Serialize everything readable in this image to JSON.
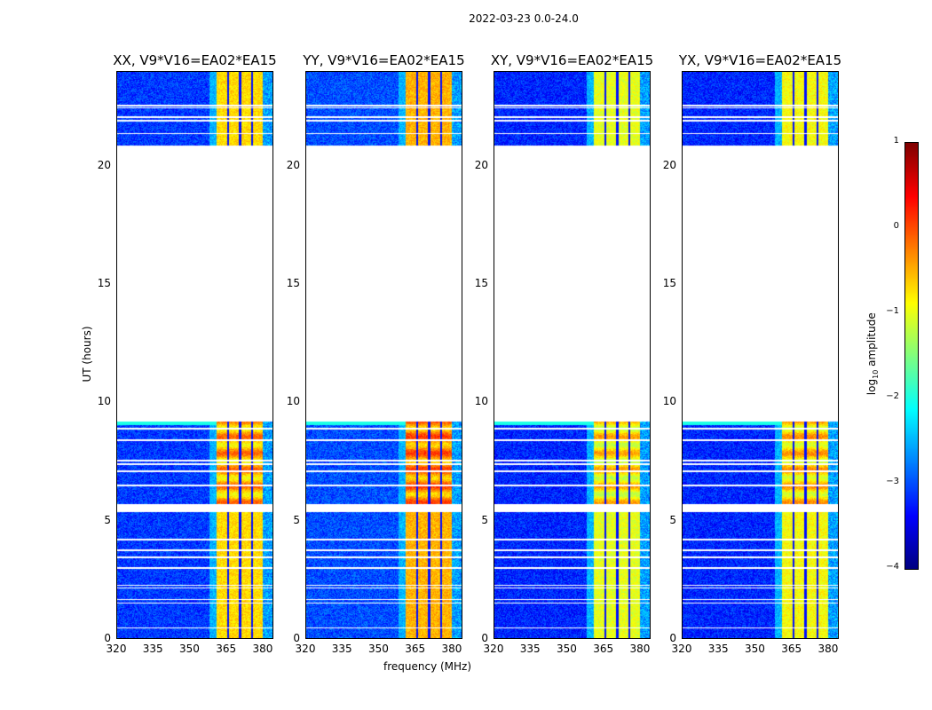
{
  "chart_data": {
    "type": "heatmap",
    "title": "2022-03-23 0.0-24.0",
    "xlabel": "frequency (MHz)",
    "ylabel": "UT (hours)",
    "xlim": [
      320,
      384.4
    ],
    "ylim": [
      0,
      24
    ],
    "xticks": [
      "320",
      "335",
      "350",
      "365",
      "380"
    ],
    "xtick_values": [
      320,
      335,
      350,
      365,
      380
    ],
    "yticks": [
      "0",
      "5",
      "10",
      "15",
      "20"
    ],
    "ytick_values": [
      0,
      5,
      10,
      15,
      20
    ],
    "panels": [
      {
        "title": "XX, V9*V16=EA02*EA15",
        "background_level": -3.1,
        "band_level": -0.7
      },
      {
        "title": "YY, V9*V16=EA02*EA15",
        "background_level": -3.0,
        "band_level": -0.5
      },
      {
        "title": "XY, V9*V16=EA02*EA15",
        "background_level": -3.2,
        "band_level": -1.0
      },
      {
        "title": "YX, V9*V16=EA02*EA15",
        "background_level": -3.2,
        "band_level": -0.9
      }
    ],
    "data_time_ranges_hours": [
      [
        0,
        5.35
      ],
      [
        5.7,
        9.2
      ],
      [
        20.9,
        24
      ]
    ],
    "band_frequency_range_mhz": [
      361,
      380
    ],
    "band_gaps_mhz": [
      365.8,
      370.8,
      375.8
    ],
    "flagged_hours": [
      0.45,
      1.5,
      1.65,
      2.15,
      2.25,
      3.0,
      3.45,
      3.75,
      4.2,
      6.5,
      7.1,
      7.4,
      7.55,
      8.4,
      8.9,
      21.4,
      21.95,
      22.1,
      22.5,
      22.6
    ],
    "colorbar": {
      "label_main": "log",
      "label_sub": "10",
      "label_rest": " amplitude",
      "range": [
        -4,
        1
      ],
      "ticks": [
        "−4",
        "−3",
        "−2",
        "−1",
        "0",
        "1"
      ],
      "tick_values": [
        -4,
        -3,
        -2,
        -1,
        0,
        1
      ],
      "colormap": "jet"
    }
  }
}
